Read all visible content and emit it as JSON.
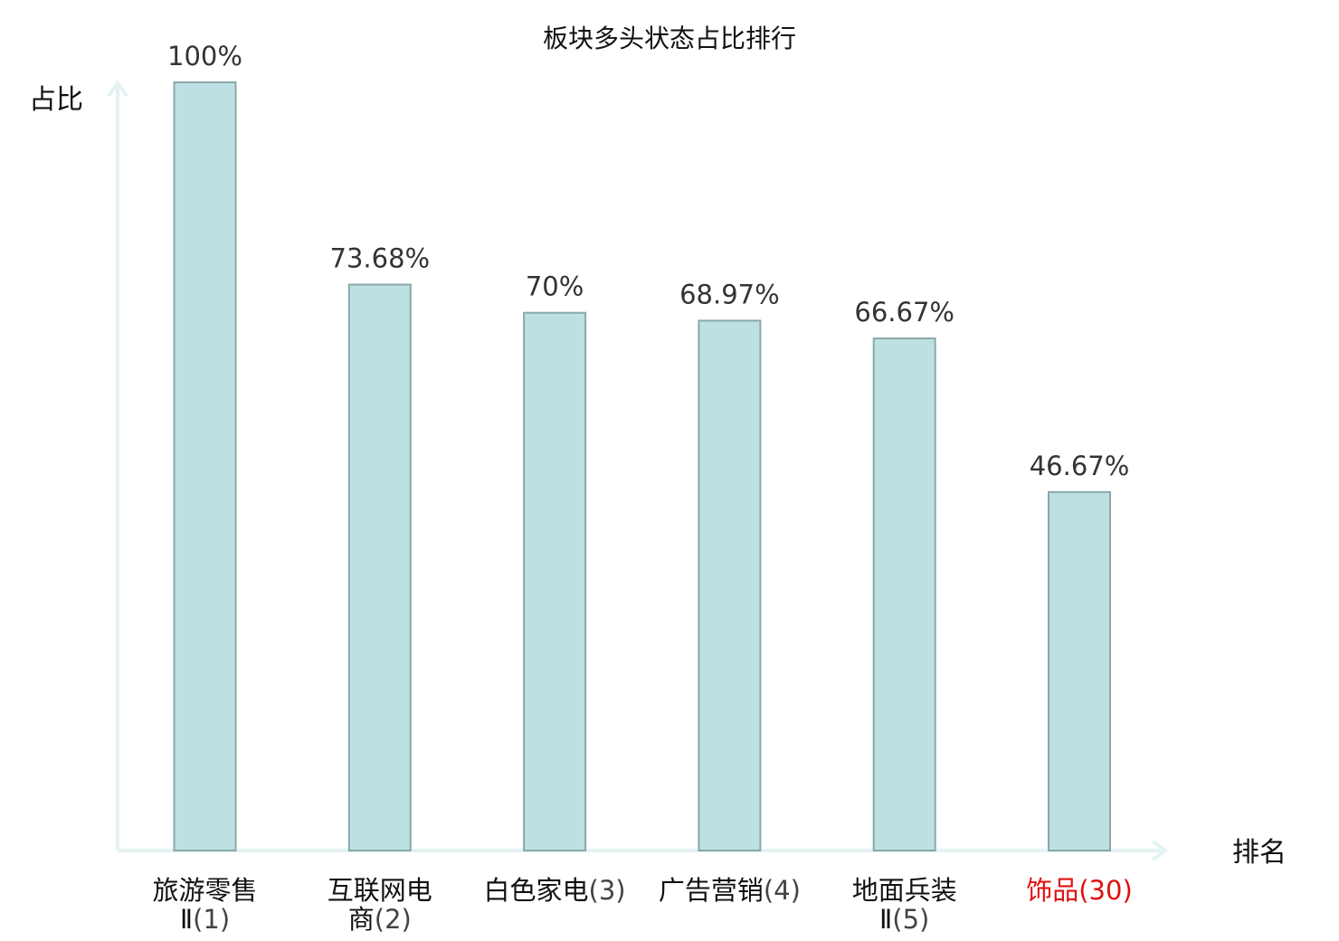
{
  "chart_data": {
    "type": "bar",
    "title": "板块多头状态占比排行",
    "ylabel": "占比",
    "xlabel": "排名",
    "ylim": [
      0,
      100
    ],
    "grid": false,
    "legend": "none",
    "categories": [
      {
        "lines": [
          "旅游零售",
          "Ⅱ(1)"
        ],
        "highlight": false
      },
      {
        "lines": [
          "互联网电",
          "商(2)"
        ],
        "highlight": false
      },
      {
        "lines": [
          "白色家电(3)"
        ],
        "highlight": false
      },
      {
        "lines": [
          "广告营销(4)"
        ],
        "highlight": false
      },
      {
        "lines": [
          "地面兵装",
          "Ⅱ(5)"
        ],
        "highlight": false
      },
      {
        "lines": [
          "饰品(30)"
        ],
        "highlight": true
      }
    ],
    "values": [
      100,
      73.68,
      70,
      68.97,
      66.67,
      46.67
    ],
    "value_labels": [
      "100%",
      "73.68%",
      "70%",
      "68.97%",
      "66.67%",
      "46.67%"
    ],
    "colors": {
      "bar_fill": "#bde0e3",
      "bar_stroke": "#8aa8aa",
      "axis": "#e3f3f1",
      "highlight_text": "#e01010"
    }
  }
}
